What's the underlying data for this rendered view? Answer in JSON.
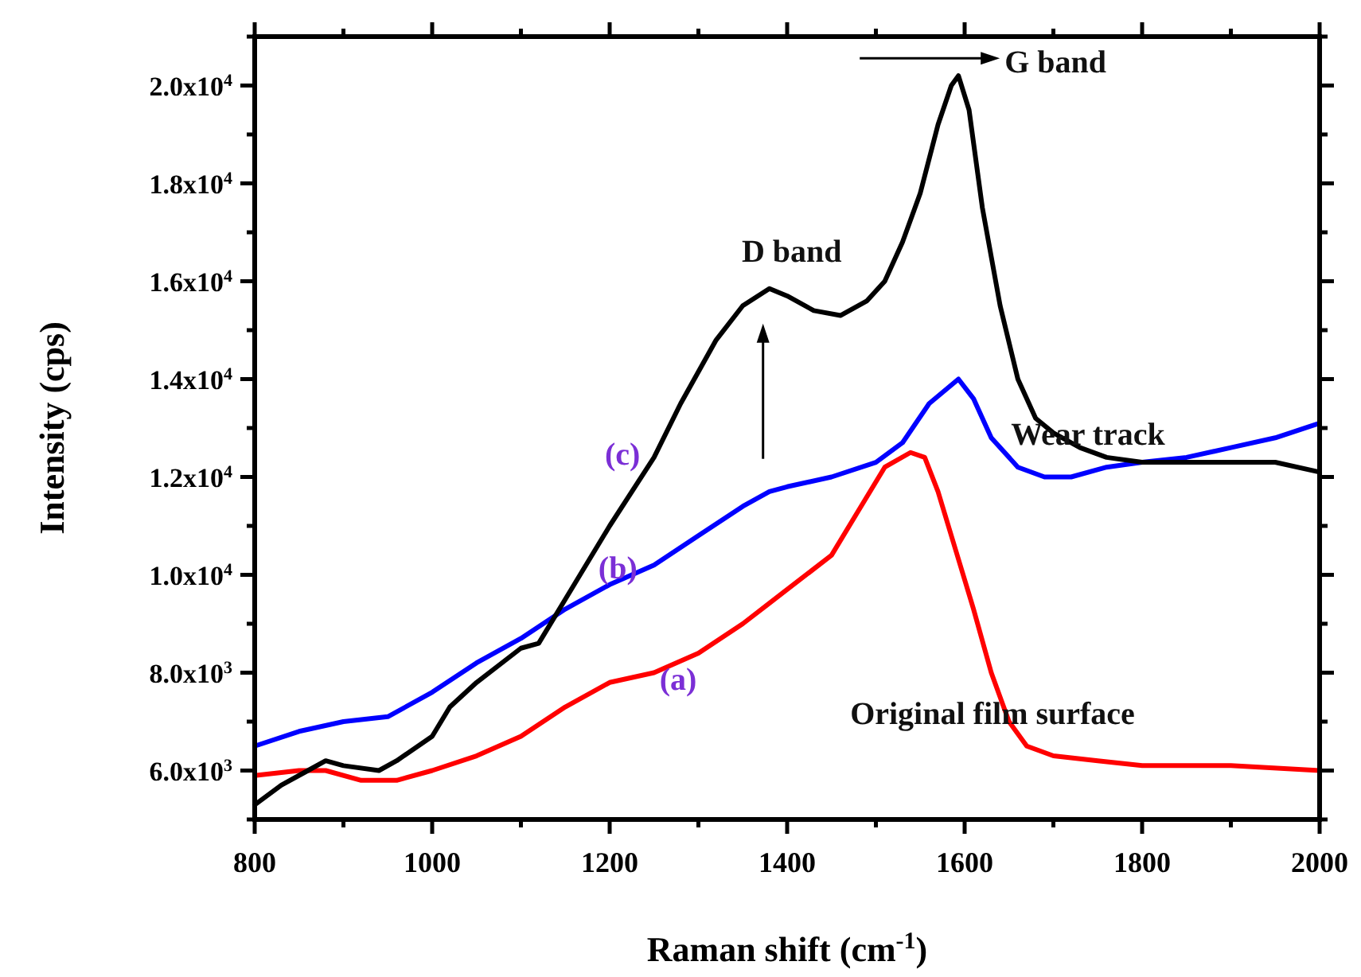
{
  "chart_data": {
    "type": "line",
    "xlabel": "Raman shift (cm$^{-1}$)",
    "ylabel": "Intensity (cps)",
    "xlim": [
      800,
      2000
    ],
    "ylim": [
      5000,
      21000
    ],
    "xticks": [
      800,
      {
        "value": 900,
        "label": null
      },
      1000,
      {
        "value": 1100,
        "label": null
      },
      1200,
      {
        "value": 1300,
        "label": null
      },
      1400,
      {
        "value": 1500,
        "label": null
      },
      1600,
      {
        "value": 1700,
        "label": null
      },
      1800,
      {
        "value": 1900,
        "label": null
      },
      2000
    ],
    "yticks": [
      {
        "value": 5000,
        "label": null
      },
      {
        "value": 6000,
        "label": "6.0x10$^{3}$"
      },
      {
        "value": 7000,
        "label": null
      },
      {
        "value": 8000,
        "label": "8.0x10$^{3}$"
      },
      {
        "value": 9000,
        "label": null
      },
      {
        "value": 10000,
        "label": "1.0x10$^{4}$"
      },
      {
        "value": 11000,
        "label": null
      },
      {
        "value": 12000,
        "label": "1.2x10$^{4}$"
      },
      {
        "value": 13000,
        "label": null
      },
      {
        "value": 14000,
        "label": "1.4x10$^{4}$"
      },
      {
        "value": 15000,
        "label": null
      },
      {
        "value": 16000,
        "label": "1.6x10$^{4}$"
      },
      {
        "value": 17000,
        "label": null
      },
      {
        "value": 18000,
        "label": "1.8x10$^{4}$"
      },
      {
        "value": 19000,
        "label": null
      },
      {
        "value": 20000,
        "label": "2.0x10$^{4}$"
      },
      {
        "value": 21000,
        "label": null
      }
    ],
    "series": [
      {
        "color": "#ff0000",
        "x": [
          800,
          850,
          880,
          920,
          960,
          1000,
          1050,
          1100,
          1150,
          1200,
          1250,
          1300,
          1350,
          1400,
          1450,
          1480,
          1510,
          1539,
          1555,
          1570,
          1590,
          1610,
          1630,
          1650,
          1670,
          1700,
          1750,
          1800,
          1900,
          2000
        ],
        "values": [
          5900,
          6000,
          6000,
          5800,
          5800,
          6000,
          6300,
          6700,
          7300,
          7800,
          8000,
          8400,
          9000,
          9700,
          10400,
          11300,
          12200,
          12500,
          12400,
          11700,
          10500,
          9300,
          8000,
          7000,
          6500,
          6300,
          6200,
          6100,
          6100,
          6000
        ]
      },
      {
        "color": "#0000ff",
        "x": [
          800,
          850,
          900,
          950,
          1000,
          1050,
          1100,
          1150,
          1200,
          1250,
          1300,
          1350,
          1380,
          1400,
          1450,
          1500,
          1530,
          1560,
          1593,
          1610,
          1630,
          1660,
          1690,
          1720,
          1760,
          1800,
          1850,
          1900,
          1950,
          2000
        ],
        "values": [
          6500,
          6800,
          7000,
          7100,
          7600,
          8200,
          8700,
          9300,
          9800,
          10200,
          10800,
          11400,
          11700,
          11800,
          12000,
          12300,
          12700,
          13500,
          14000,
          13600,
          12800,
          12200,
          12000,
          12000,
          12200,
          12300,
          12400,
          12600,
          12800,
          13100
        ]
      },
      {
        "color": "#000000",
        "x": [
          800,
          830,
          860,
          880,
          900,
          940,
          960,
          1000,
          1020,
          1050,
          1100,
          1120,
          1150,
          1200,
          1250,
          1280,
          1320,
          1350,
          1380,
          1400,
          1430,
          1460,
          1490,
          1510,
          1530,
          1550,
          1570,
          1585,
          1593,
          1605,
          1620,
          1640,
          1660,
          1680,
          1700,
          1730,
          1760,
          1800,
          1850,
          1900,
          1950,
          2000
        ],
        "values": [
          5300,
          5700,
          6000,
          6200,
          6100,
          6000,
          6200,
          6700,
          7300,
          7800,
          8500,
          8600,
          9500,
          11000,
          12400,
          13500,
          14800,
          15500,
          15850,
          15700,
          15400,
          15300,
          15600,
          16000,
          16800,
          17800,
          19200,
          20000,
          20200,
          19500,
          17500,
          15500,
          14000,
          13200,
          12900,
          12600,
          12400,
          12300,
          12300,
          12300,
          12300,
          12100
        ]
      }
    ],
    "annotations": [
      {
        "text": "D band",
        "x": 1380,
        "y": 15850
      },
      {
        "text": "G band",
        "x": 1593,
        "y": 20200
      },
      {
        "text": "Wear track",
        "x": 1800,
        "y": 12400
      },
      {
        "text": "Original film surface",
        "x": 1800,
        "y": 6100
      },
      {
        "text": "(a)",
        "x": 1270,
        "y": 8100
      },
      {
        "text": "(b)",
        "x": 1220,
        "y": 10000
      },
      {
        "text": "(c)",
        "x": 1236,
        "y": 12000
      }
    ]
  }
}
